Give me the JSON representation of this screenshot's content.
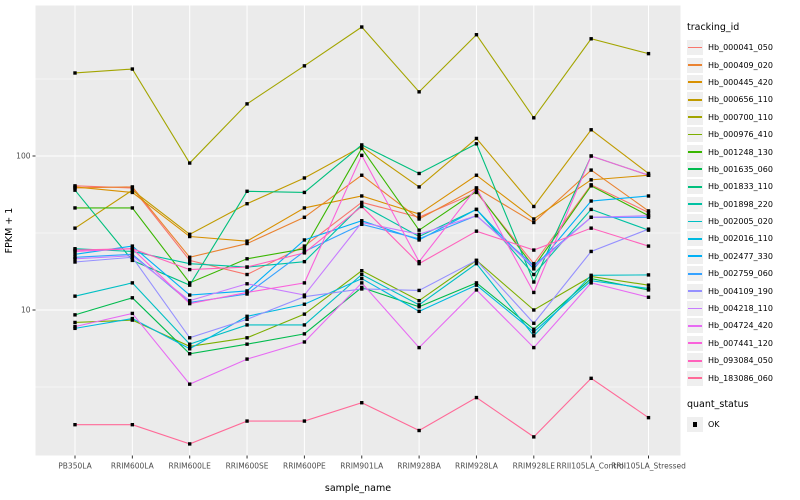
{
  "chart_data": {
    "type": "line",
    "title": "",
    "xlabel": "sample_name",
    "ylabel": "FPKM + 1",
    "y_scale": "log10",
    "ylim": [
      1,
      900
    ],
    "y_ticks": [
      100,
      10
    ],
    "y_minor_gridlines": [
      316.2,
      31.62,
      3.162
    ],
    "grid": true,
    "legend_position": "right",
    "legend_title": "tracking_id",
    "quant_legend": {
      "title": "quant_status",
      "items": [
        "OK"
      ]
    },
    "point_marker": "black-square",
    "colors": {
      "panel_bg": "#EBEBEB",
      "grid": "#FFFFFF",
      "tick_label": "#4D4D4D",
      "axis_title": "#000000",
      "point": "#000000",
      "tick_mark": "#333333"
    },
    "categories": [
      "PB350LA",
      "RRIM600LA",
      "RRIM600LE",
      "RRIM600SE",
      "RRIM600PE",
      "RRIM901LA",
      "RRIM928BA",
      "RRIM928LA",
      "RRIM928LE",
      "RRII105LA_Control",
      "RRII105LA_Stressed"
    ],
    "series": [
      {
        "name": "Hb_000041_050",
        "color": "#F8766D",
        "values": [
          64,
          62,
          21,
          17,
          26,
          50,
          40,
          58,
          20,
          65,
          43
        ]
      },
      {
        "name": "Hb_000409_020",
        "color": "#EA8331",
        "values": [
          62,
          63,
          22,
          27,
          40,
          75,
          39,
          62,
          37,
          81,
          44
        ]
      },
      {
        "name": "Hb_000445_420",
        "color": "#D89000",
        "values": [
          63,
          58,
          30,
          28,
          46,
          55,
          42,
          75,
          39,
          70,
          75
        ]
      },
      {
        "name": "Hb_000656_110",
        "color": "#C09B00",
        "values": [
          34,
          60,
          31,
          49,
          72,
          115,
          63,
          130,
          47,
          148,
          77
        ]
      },
      {
        "name": "Hb_000700_110",
        "color": "#A3A500",
        "values": [
          346,
          367,
          90,
          218,
          385,
          688,
          261,
          613,
          177,
          577,
          462
        ]
      },
      {
        "name": "Hb_000976_410",
        "color": "#7CAE00",
        "values": [
          8.3,
          8.6,
          5.8,
          6.6,
          9.4,
          18,
          11.5,
          21,
          10,
          16.5,
          14.5
        ]
      },
      {
        "name": "Hb_001248_130",
        "color": "#39B600",
        "values": [
          46,
          46,
          15,
          21.5,
          25,
          112,
          33,
          59,
          19,
          64,
          41
        ]
      },
      {
        "name": "Hb_001635_060",
        "color": "#00BB4E",
        "values": [
          9.3,
          12,
          5.2,
          6,
          7,
          14,
          10.5,
          15,
          7.5,
          16,
          13.5
        ]
      },
      {
        "name": "Hb_001833_110",
        "color": "#00BF7D",
        "values": [
          60,
          21,
          14.5,
          59,
          58,
          118,
          77,
          120,
          15.2,
          100,
          75
        ]
      },
      {
        "name": "Hb_001898_220",
        "color": "#00C1A3",
        "values": [
          25,
          24,
          20,
          19,
          20.6,
          48,
          30,
          45,
          17,
          45,
          33
        ]
      },
      {
        "name": "Hb_002005_020",
        "color": "#00BFC4",
        "values": [
          12.3,
          15,
          6,
          8,
          8,
          17,
          10.8,
          20,
          6.8,
          16.8,
          16.9
        ]
      },
      {
        "name": "Hb_002016_110",
        "color": "#00BAE0",
        "values": [
          7.6,
          8.8,
          5.6,
          9.1,
          10.9,
          16,
          9.8,
          14.5,
          7.2,
          15.5,
          13.8
        ]
      },
      {
        "name": "Hb_002477_330",
        "color": "#00B0F6",
        "values": [
          23,
          26,
          12.5,
          13.3,
          28.5,
          38,
          28.5,
          45,
          18.5,
          51,
          55
        ]
      },
      {
        "name": "Hb_002759_060",
        "color": "#35A2FF",
        "values": [
          22,
          23,
          11.2,
          12.7,
          24,
          36,
          29,
          41,
          19.5,
          40,
          40
        ]
      },
      {
        "name": "Hb_004109_190",
        "color": "#9590FF",
        "values": [
          20.5,
          22,
          6.6,
          8.7,
          12.2,
          13.7,
          13.4,
          21,
          8.2,
          24,
          33.5
        ]
      },
      {
        "name": "Hb_004218_110",
        "color": "#C77CFF",
        "values": [
          21.5,
          22.5,
          11.5,
          14.8,
          12.5,
          37,
          31,
          41,
          19,
          40,
          41
        ]
      },
      {
        "name": "Hb_004724_420",
        "color": "#E76BF3",
        "values": [
          7.8,
          9.5,
          3.3,
          4.8,
          6.2,
          15,
          5.7,
          13.5,
          5.7,
          15,
          12.1
        ]
      },
      {
        "name": "Hb_007441_120",
        "color": "#FA62DB",
        "values": [
          24,
          25,
          11,
          13,
          15,
          101,
          20.6,
          62,
          13,
          100,
          75
        ]
      },
      {
        "name": "Hb_093084_050",
        "color": "#FF62BC",
        "values": [
          24.5,
          25,
          18.3,
          19,
          23.5,
          47,
          20,
          32.5,
          24.5,
          34,
          26
        ]
      },
      {
        "name": "Hb_183086_060",
        "color": "#FF6A98",
        "values": [
          1.8,
          1.8,
          1.35,
          1.9,
          1.9,
          2.5,
          1.65,
          2.7,
          1.5,
          3.6,
          2.0
        ]
      }
    ]
  }
}
